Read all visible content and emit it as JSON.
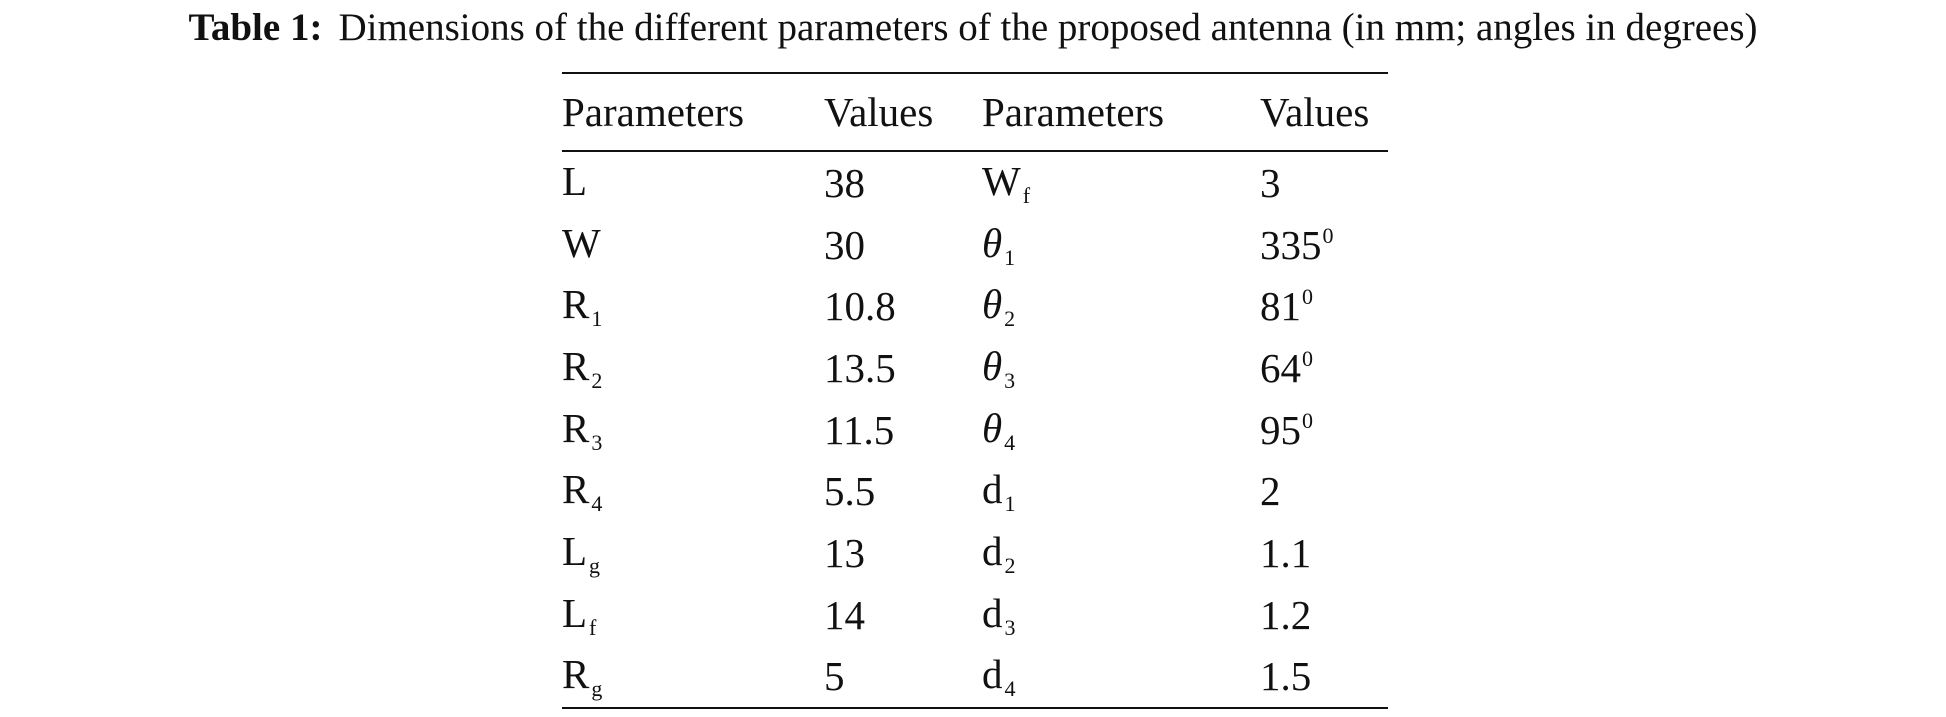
{
  "caption": {
    "label": "Table 1:",
    "text": "Dimensions of the different parameters of the proposed antenna (in mm; angles in degrees)"
  },
  "table": {
    "headers": [
      "Parameters",
      "Values",
      "Parameters",
      "Values"
    ],
    "rows": [
      {
        "p1": "L",
        "p1_sub": "",
        "v1": "38",
        "p2": "W",
        "p2_sub": "f",
        "v2": "3",
        "v2_sup": ""
      },
      {
        "p1": "W",
        "p1_sub": "",
        "v1": "30",
        "p2": "θ",
        "p2_sub": "1",
        "v2": "335",
        "v2_sup": "0"
      },
      {
        "p1": "R",
        "p1_sub": "1",
        "v1": "10.8",
        "p2": "θ",
        "p2_sub": "2",
        "v2": "81",
        "v2_sup": "0"
      },
      {
        "p1": "R",
        "p1_sub": "2",
        "v1": "13.5",
        "p2": "θ",
        "p2_sub": "3",
        "v2": "64",
        "v2_sup": "0"
      },
      {
        "p1": "R",
        "p1_sub": "3",
        "v1": "11.5",
        "p2": "θ",
        "p2_sub": "4",
        "v2": "95",
        "v2_sup": "0"
      },
      {
        "p1": "R",
        "p1_sub": "4",
        "v1": "5.5",
        "p2": "d",
        "p2_sub": "1",
        "v2": "2",
        "v2_sup": ""
      },
      {
        "p1": "L",
        "p1_sub": "g",
        "v1": "13",
        "p2": "d",
        "p2_sub": "2",
        "v2": "1.1",
        "v2_sup": ""
      },
      {
        "p1": "L",
        "p1_sub": "f",
        "v1": "14",
        "p2": "d",
        "p2_sub": "3",
        "v2": "1.2",
        "v2_sup": ""
      },
      {
        "p1": "R",
        "p1_sub": "g",
        "v1": "5",
        "p2": "d",
        "p2_sub": "4",
        "v2": "1.5",
        "v2_sup": ""
      }
    ]
  }
}
